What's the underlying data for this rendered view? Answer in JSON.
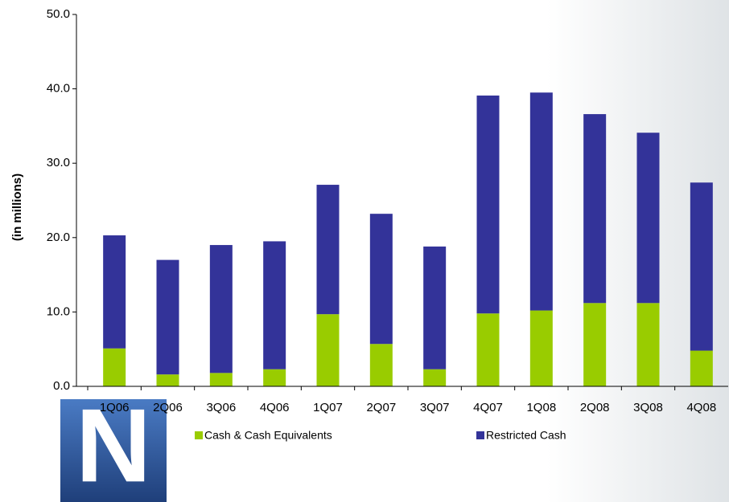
{
  "chart_data": {
    "type": "stacked_bar",
    "y_label": "(in millions)",
    "categories": [
      "1Q06",
      "2Q06",
      "3Q06",
      "4Q06",
      "1Q07",
      "2Q07",
      "3Q07",
      "4Q07",
      "1Q08",
      "2Q08",
      "3Q08",
      "4Q08"
    ],
    "series": [
      {
        "name": "Cash & Cash Equivalents",
        "color": "#99cc00",
        "values": [
          5.1,
          1.6,
          1.8,
          2.3,
          9.7,
          5.7,
          2.3,
          9.8,
          10.2,
          11.2,
          11.2,
          4.8
        ]
      },
      {
        "name": "Restricted Cash",
        "color": "#333399",
        "values": [
          15.2,
          15.4,
          17.2,
          17.2,
          17.4,
          17.5,
          16.5,
          29.3,
          29.3,
          25.4,
          22.9,
          22.6
        ]
      }
    ],
    "ylim": [
      0,
      50
    ],
    "yticks": [
      {
        "value": 0,
        "label": "0.0"
      },
      {
        "value": 10,
        "label": "10.0"
      },
      {
        "value": 20,
        "label": "20.0"
      },
      {
        "value": 30,
        "label": "30.0"
      },
      {
        "value": 40,
        "label": "40.0"
      },
      {
        "value": 50,
        "label": "50.0"
      }
    ]
  },
  "logo": "N"
}
